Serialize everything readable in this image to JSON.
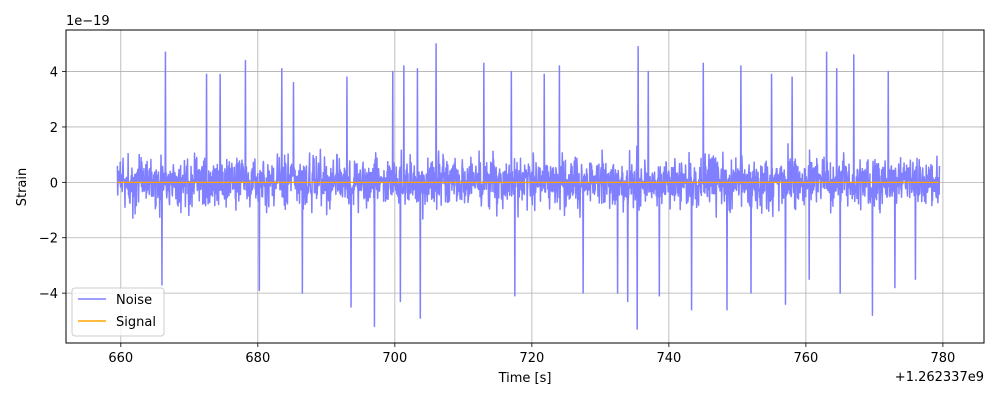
{
  "chart_data": {
    "type": "line",
    "title": "",
    "xlabel": "Time [s]",
    "ylabel": "Strain",
    "x_offset_text": "+1.262337e9",
    "y_scale_text": "1e−19",
    "xlim": [
      652,
      786
    ],
    "ylim": [
      -5.8,
      5.5
    ],
    "x_ticks": [
      660,
      680,
      700,
      720,
      740,
      760,
      780
    ],
    "x_tick_labels": [
      "660",
      "680",
      "700",
      "720",
      "740",
      "760",
      "780"
    ],
    "y_ticks": [
      -4,
      -2,
      0,
      2,
      4
    ],
    "y_tick_labels": [
      "−4",
      "−2",
      "0",
      "2",
      "4"
    ],
    "grid": true,
    "legend_position": "lower-left",
    "series": [
      {
        "name": "Noise",
        "color": "#7f7fff",
        "x_range": [
          659.5,
          779.5
        ],
        "typical_envelope": [
          -2.0,
          2.0
        ],
        "max": 5.0,
        "min": -5.3,
        "peaks": [
          {
            "x": 666.5,
            "y": 4.7
          },
          {
            "x": 672.5,
            "y": 3.9
          },
          {
            "x": 674.5,
            "y": 3.9
          },
          {
            "x": 678.2,
            "y": 4.4
          },
          {
            "x": 683.5,
            "y": 4.1
          },
          {
            "x": 685.2,
            "y": 3.6
          },
          {
            "x": 693.0,
            "y": 3.8
          },
          {
            "x": 699.7,
            "y": 4.0
          },
          {
            "x": 701.3,
            "y": 4.2
          },
          {
            "x": 703.3,
            "y": 4.1
          },
          {
            "x": 706.0,
            "y": 5.0
          },
          {
            "x": 713.0,
            "y": 4.3
          },
          {
            "x": 717.0,
            "y": 4.0
          },
          {
            "x": 721.8,
            "y": 3.9
          },
          {
            "x": 724.0,
            "y": 4.2
          },
          {
            "x": 735.5,
            "y": 4.9
          },
          {
            "x": 737.0,
            "y": 4.0
          },
          {
            "x": 745.0,
            "y": 4.3
          },
          {
            "x": 750.5,
            "y": 4.2
          },
          {
            "x": 755.0,
            "y": 3.9
          },
          {
            "x": 758.0,
            "y": 3.8
          },
          {
            "x": 763.0,
            "y": 4.7
          },
          {
            "x": 764.5,
            "y": 4.1
          },
          {
            "x": 767.0,
            "y": 4.6
          },
          {
            "x": 772.0,
            "y": 4.0
          }
        ],
        "troughs": [
          {
            "x": 666.0,
            "y": -3.7
          },
          {
            "x": 680.2,
            "y": -3.9
          },
          {
            "x": 686.5,
            "y": -4.0
          },
          {
            "x": 693.6,
            "y": -4.5
          },
          {
            "x": 697.0,
            "y": -5.2
          },
          {
            "x": 700.8,
            "y": -4.3
          },
          {
            "x": 703.7,
            "y": -4.9
          },
          {
            "x": 717.5,
            "y": -4.1
          },
          {
            "x": 727.5,
            "y": -4.0
          },
          {
            "x": 732.5,
            "y": -4.0
          },
          {
            "x": 734.0,
            "y": -4.3
          },
          {
            "x": 735.4,
            "y": -5.3
          },
          {
            "x": 738.6,
            "y": -4.1
          },
          {
            "x": 743.3,
            "y": -4.6
          },
          {
            "x": 748.5,
            "y": -4.6
          },
          {
            "x": 752.0,
            "y": -4.0
          },
          {
            "x": 757.0,
            "y": -4.4
          },
          {
            "x": 760.5,
            "y": -3.5
          },
          {
            "x": 765.0,
            "y": -4.0
          },
          {
            "x": 769.7,
            "y": -4.8
          },
          {
            "x": 773.0,
            "y": -3.8
          },
          {
            "x": 776.0,
            "y": -3.5
          }
        ]
      },
      {
        "name": "Signal",
        "color": "#ffa500",
        "x": [
          659.5,
          779.5
        ],
        "values": [
          0,
          0
        ]
      }
    ]
  }
}
